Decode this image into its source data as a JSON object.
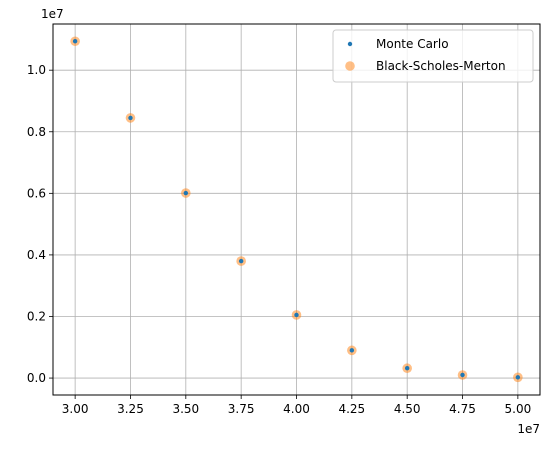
{
  "chart_data": {
    "type": "scatter",
    "title": "",
    "xlabel": "",
    "ylabel": "",
    "x_offset_label": "1e7",
    "y_offset_label": "1e7",
    "x_scale": 10000000,
    "y_scale": 10000000,
    "xlim": [
      29000000,
      51000000
    ],
    "ylim": [
      -550000,
      11500000
    ],
    "grid": true,
    "legend_position": "upper right",
    "x_ticks": [
      {
        "value": 30000000,
        "label": "3.00"
      },
      {
        "value": 32500000,
        "label": "3.25"
      },
      {
        "value": 35000000,
        "label": "3.50"
      },
      {
        "value": 37500000,
        "label": "3.75"
      },
      {
        "value": 40000000,
        "label": "4.00"
      },
      {
        "value": 42500000,
        "label": "4.25"
      },
      {
        "value": 45000000,
        "label": "4.50"
      },
      {
        "value": 47500000,
        "label": "4.75"
      },
      {
        "value": 50000000,
        "label": "5.00"
      }
    ],
    "y_ticks": [
      {
        "value": 0,
        "label": "0.0"
      },
      {
        "value": 2000000,
        "label": "0.2"
      },
      {
        "value": 4000000,
        "label": "0.4"
      },
      {
        "value": 6000000,
        "label": "0.6"
      },
      {
        "value": 8000000,
        "label": "0.8"
      },
      {
        "value": 10000000,
        "label": "1.0"
      }
    ],
    "x": [
      30000000,
      32500000,
      35000000,
      37500000,
      40000000,
      42500000,
      45000000,
      47500000,
      50000000
    ],
    "series": [
      {
        "name": "Monte Carlo",
        "color": "#1f77b4",
        "marker": "small-dot",
        "values": [
          10940000,
          8450000,
          6010000,
          3800000,
          2050000,
          900000,
          320000,
          100000,
          25000
        ]
      },
      {
        "name": "Black-Scholes-Merton",
        "color": "#ff7f0e",
        "opacity": 0.5,
        "marker": "large-circle",
        "values": [
          10940000,
          8450000,
          6010000,
          3800000,
          2050000,
          900000,
          320000,
          100000,
          25000
        ]
      }
    ]
  }
}
